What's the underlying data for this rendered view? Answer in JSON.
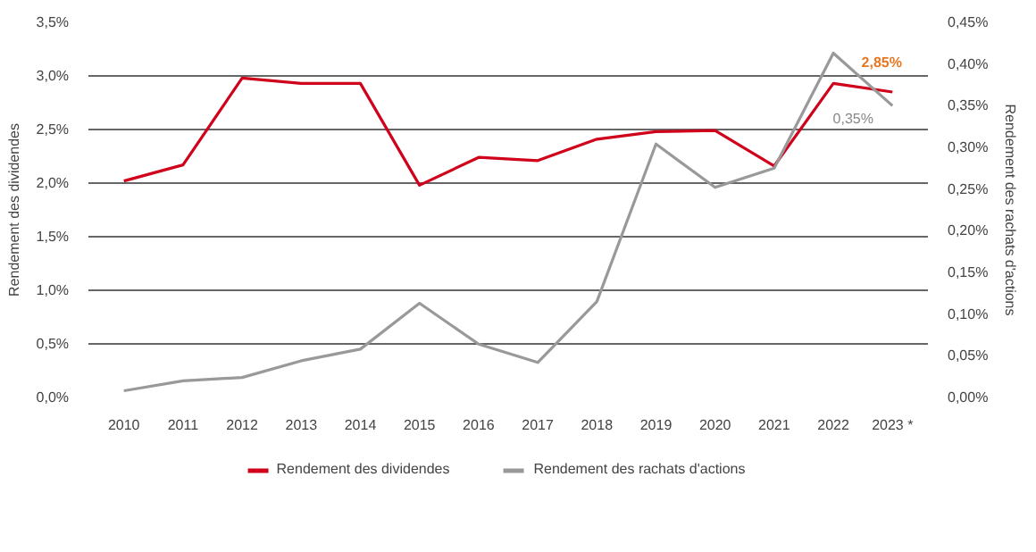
{
  "chart_data": {
    "type": "line",
    "categories": [
      "2010",
      "2011",
      "2012",
      "2013",
      "2014",
      "2015",
      "2016",
      "2017",
      "2018",
      "2019",
      "2020",
      "2021",
      "2022",
      "2023 *"
    ],
    "ylabel": "Rendement des dividendes",
    "y2label": "Rendement des rachats d'actions",
    "series": [
      {
        "name": "Rendement des dividendes",
        "color": "#d0021b",
        "values": [
          2.02,
          2.17,
          2.98,
          2.93,
          2.93,
          1.98,
          2.24,
          2.21,
          2.41,
          2.48,
          2.49,
          2.16,
          2.93,
          2.85
        ]
      },
      {
        "name": "Rendement des rachats d'actions",
        "color": "#999999",
        "axis": "y2",
        "values": [
          0.008,
          0.02,
          0.024,
          0.044,
          0.058,
          0.113,
          0.064,
          0.042,
          0.115,
          0.304,
          0.252,
          0.275,
          0.413,
          0.35
        ]
      }
    ],
    "annotations": [
      "2,85%",
      "0,35%"
    ],
    "ylim": [
      0,
      3.5
    ],
    "yticks": [
      {
        "value": 0,
        "label": "0,0%"
      },
      {
        "value": 0.5,
        "label": "0,5%"
      },
      {
        "value": 1,
        "label": "1,0%"
      },
      {
        "value": 1.5,
        "label": "1,5%"
      },
      {
        "value": 2,
        "label": "2,0%"
      },
      {
        "value": 2.5,
        "label": "2,5%"
      },
      {
        "value": 3,
        "label": "3,0%"
      },
      {
        "value": 3.5,
        "label": "3,5%"
      }
    ],
    "y2lim": [
      0,
      0.45
    ],
    "y2ticks": [
      {
        "value": 0,
        "label": "0,00%"
      },
      {
        "value": 0.05,
        "label": "0,05%"
      },
      {
        "value": 0.1,
        "label": "0,10%"
      },
      {
        "value": 0.15,
        "label": "0,15%"
      },
      {
        "value": 0.2,
        "label": "0,20%"
      },
      {
        "value": 0.25,
        "label": "0,25%"
      },
      {
        "value": 0.3,
        "label": "0,30%"
      },
      {
        "value": 0.35,
        "label": "0,35%"
      },
      {
        "value": 0.4,
        "label": "0,40%"
      },
      {
        "value": 0.45,
        "label": "0,45%"
      }
    ],
    "grid": "y",
    "legend": "bottom",
    "marker": "none",
    "line_style": "solid"
  }
}
